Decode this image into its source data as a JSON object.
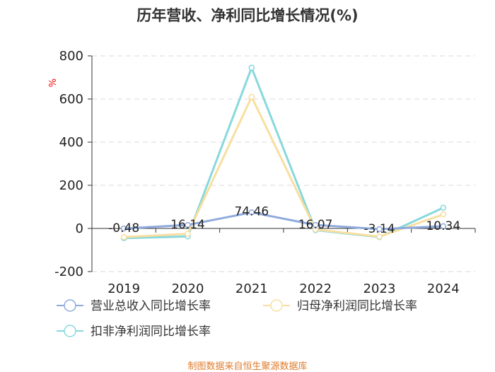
{
  "chart_data": {
    "type": "line",
    "title": "历年营收、净利同比增长情况(%)",
    "ylabel": "%",
    "xlabel": "",
    "categories": [
      "2019",
      "2020",
      "2021",
      "2022",
      "2023",
      "2024"
    ],
    "ylim": [
      -200,
      800
    ],
    "yticks": [
      -200,
      0,
      200,
      400,
      600,
      800
    ],
    "grid": true,
    "legend_position": "bottom",
    "series": [
      {
        "name": "营业总收入同比增长率",
        "color": "#8faadc",
        "values": [
          -0.48,
          16.14,
          74.46,
          16.07,
          -3.14,
          10.34
        ],
        "labels": [
          "-0.48",
          "16.14",
          "74.46",
          "16.07",
          "-3.14",
          "10.34"
        ]
      },
      {
        "name": "归母净利润同比增长率",
        "color": "#f8dfa0",
        "values": [
          -40,
          -25,
          610,
          -5,
          -38,
          65
        ]
      },
      {
        "name": "扣非净利润同比增长率",
        "color": "#88d8dc",
        "values": [
          -45,
          -37,
          745,
          -8,
          -40,
          96
        ]
      }
    ]
  },
  "source": "制图数据来自恒生聚源数据库"
}
